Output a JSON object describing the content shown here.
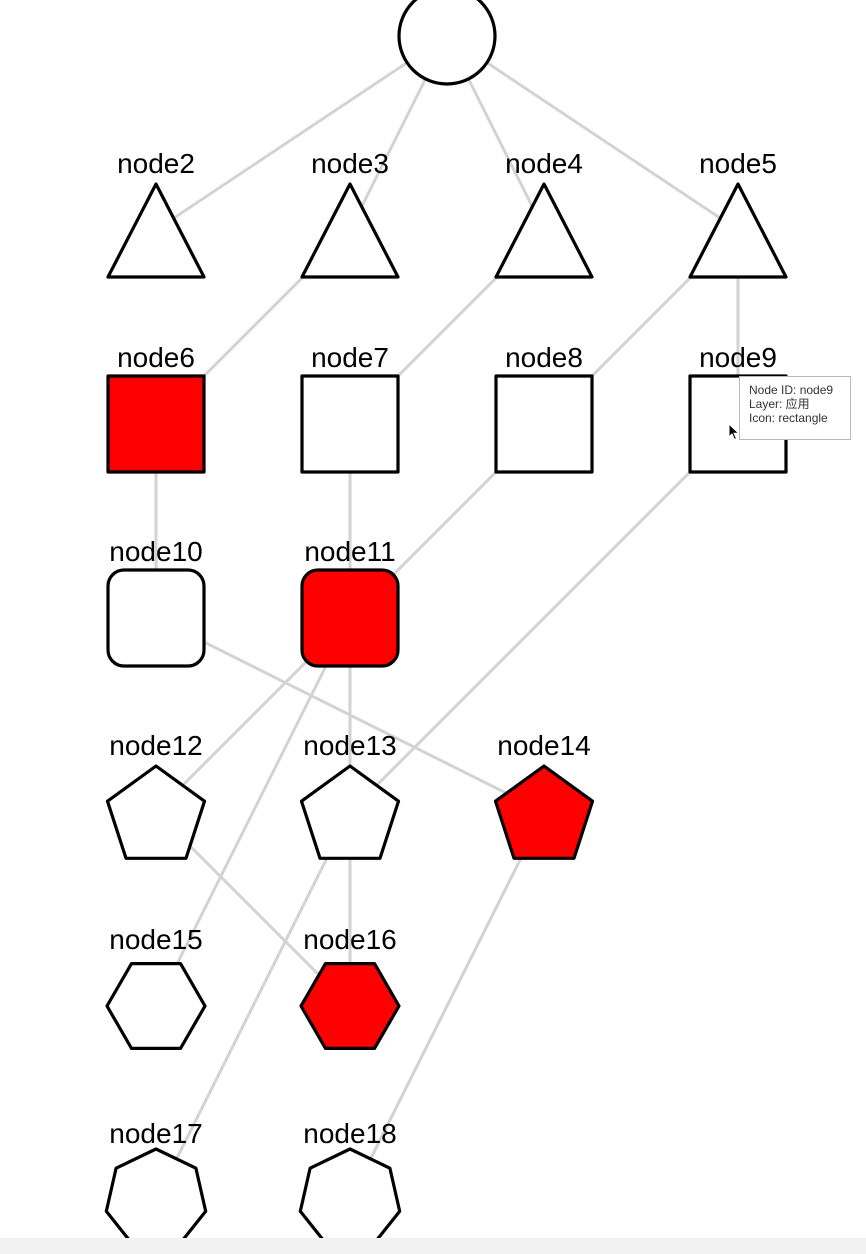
{
  "graph": {
    "colors": {
      "highlight": "#ff0000",
      "normal": "#ffffff",
      "stroke": "#000000",
      "edge": "#d3d3d3"
    },
    "nodes": [
      {
        "id": "node1",
        "label": "",
        "shape": "circle",
        "highlighted": false
      },
      {
        "id": "node2",
        "label": "node2",
        "shape": "triangle",
        "highlighted": false
      },
      {
        "id": "node3",
        "label": "node3",
        "shape": "triangle",
        "highlighted": false
      },
      {
        "id": "node4",
        "label": "node4",
        "shape": "triangle",
        "highlighted": false
      },
      {
        "id": "node5",
        "label": "node5",
        "shape": "triangle",
        "highlighted": false
      },
      {
        "id": "node6",
        "label": "node6",
        "shape": "rectangle",
        "highlighted": true
      },
      {
        "id": "node7",
        "label": "node7",
        "shape": "rectangle",
        "highlighted": false
      },
      {
        "id": "node8",
        "label": "node8",
        "shape": "rectangle",
        "highlighted": false
      },
      {
        "id": "node9",
        "label": "node9",
        "shape": "rectangle",
        "highlighted": false
      },
      {
        "id": "node10",
        "label": "node10",
        "shape": "rounded-rectangle",
        "highlighted": false
      },
      {
        "id": "node11",
        "label": "node11",
        "shape": "rounded-rectangle",
        "highlighted": true
      },
      {
        "id": "node12",
        "label": "node12",
        "shape": "pentagon",
        "highlighted": false
      },
      {
        "id": "node13",
        "label": "node13",
        "shape": "pentagon",
        "highlighted": false
      },
      {
        "id": "node14",
        "label": "node14",
        "shape": "pentagon",
        "highlighted": true
      },
      {
        "id": "node15",
        "label": "node15",
        "shape": "hexagon",
        "highlighted": false
      },
      {
        "id": "node16",
        "label": "node16",
        "shape": "hexagon",
        "highlighted": true
      },
      {
        "id": "node17",
        "label": "node17",
        "shape": "heptagon",
        "highlighted": false
      },
      {
        "id": "node18",
        "label": "node18",
        "shape": "heptagon",
        "highlighted": false
      }
    ],
    "edges": [
      [
        "node1",
        "node2"
      ],
      [
        "node1",
        "node3"
      ],
      [
        "node1",
        "node4"
      ],
      [
        "node1",
        "node5"
      ],
      [
        "node3",
        "node6"
      ],
      [
        "node4",
        "node7"
      ],
      [
        "node5",
        "node8"
      ],
      [
        "node5",
        "node9"
      ],
      [
        "node6",
        "node10"
      ],
      [
        "node7",
        "node11"
      ],
      [
        "node8",
        "node11"
      ],
      [
        "node9",
        "node13"
      ],
      [
        "node10",
        "node14"
      ],
      [
        "node11",
        "node12"
      ],
      [
        "node11",
        "node13"
      ],
      [
        "node11",
        "node15"
      ],
      [
        "node12",
        "node16"
      ],
      [
        "node13",
        "node16"
      ],
      [
        "node13",
        "node17"
      ],
      [
        "node14",
        "node18"
      ]
    ]
  },
  "tooltip": {
    "node_id_line": "Node ID: node9",
    "layer_line": "Layer: 应用",
    "icon_line": "Icon: rectangle"
  }
}
